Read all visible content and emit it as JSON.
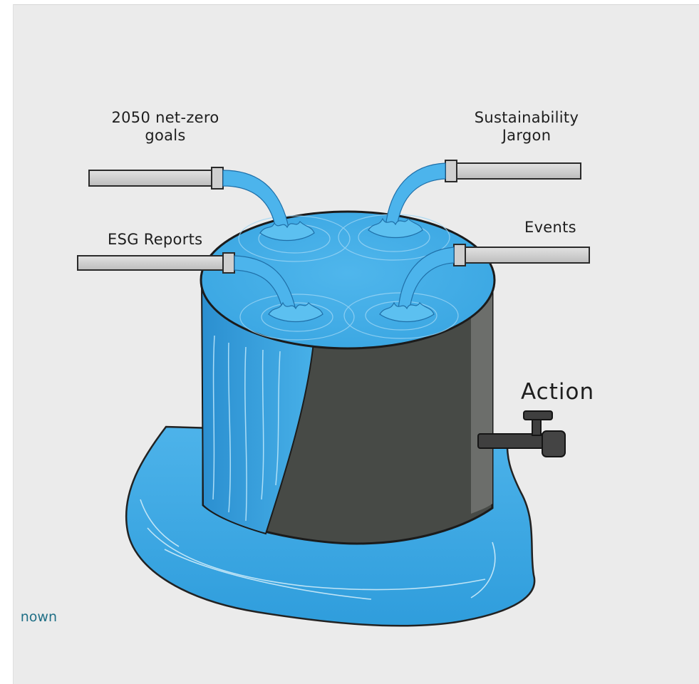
{
  "labels": {
    "goals_line1": "2050 net-zero",
    "goals_line2": "goals",
    "jargon_line1": "Sustainability",
    "jargon_line2": "Jargon",
    "esg": "ESG Reports",
    "events": "Events",
    "action": "Action"
  },
  "credit": "nown",
  "colors": {
    "background": "#ebebeb",
    "water": "#3ea8e4",
    "tank_body": "#474a46",
    "pipe": "#d0d0d0",
    "tap": "#3f3f3f",
    "credit_text": "#1f6f86"
  }
}
